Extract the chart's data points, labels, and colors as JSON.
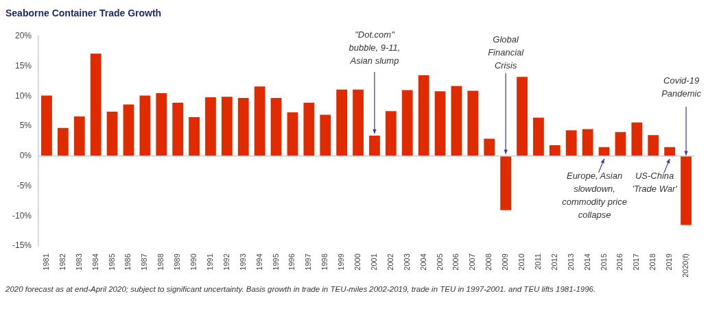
{
  "chart_data": {
    "type": "bar",
    "title": "Seaborne Container Trade Growth",
    "categories": [
      "1981",
      "1982",
      "1983",
      "1984",
      "1985",
      "1986",
      "1987",
      "1988",
      "1989",
      "1990",
      "1991",
      "1992",
      "1993",
      "1994",
      "1995",
      "1996",
      "1997",
      "1998",
      "1999",
      "2000",
      "2001",
      "2002",
      "2003",
      "2004",
      "2005",
      "2006",
      "2007",
      "2008",
      "2009",
      "2010",
      "2011",
      "2012",
      "2013",
      "2014",
      "2015",
      "2016",
      "2017",
      "2018",
      "2019",
      "2020(f)"
    ],
    "values": [
      10.1,
      4.7,
      6.6,
      17.1,
      7.4,
      8.6,
      10.1,
      10.5,
      8.9,
      6.5,
      9.8,
      9.9,
      9.7,
      11.6,
      9.7,
      7.3,
      8.9,
      6.9,
      11.1,
      11.1,
      3.4,
      7.5,
      11.0,
      13.5,
      10.8,
      11.7,
      10.9,
      2.9,
      -9.0,
      13.2,
      6.4,
      1.8,
      4.3,
      4.5,
      1.5,
      4.0,
      5.6,
      3.5,
      1.5,
      -11.5
    ],
    "color": "#e02a00",
    "ylim": [
      -15,
      20
    ],
    "yticks": [
      {
        "value": -15,
        "label": "-15%"
      },
      {
        "value": -10,
        "label": "-10%"
      },
      {
        "value": -5,
        "label": "-5%"
      },
      {
        "value": 0,
        "label": "0%"
      },
      {
        "value": 5,
        "label": "5%"
      },
      {
        "value": 10,
        "label": "10%"
      },
      {
        "value": 15,
        "label": "15%"
      },
      {
        "value": 20,
        "label": "20%"
      }
    ],
    "annotations": [
      {
        "text": "\"Dot.com\" bubble, 9-11, Asian slump",
        "x": "2001",
        "y": 3.4
      },
      {
        "text": "Global Financial Crisis",
        "x": "2009",
        "y": 0
      },
      {
        "text": "Europe, Asian slowdown, commodity price collapse",
        "x": "2015",
        "y": 0
      },
      {
        "text": "US-China 'Trade War'",
        "x": "2019",
        "y": 0
      },
      {
        "text": "Covid-19 Pandemic",
        "x": "2020(f)",
        "y": 0
      },
      "2020 forecast as at end-April 2020; subject to significant uncertainty. Basis growth in trade in TEU-miles 2002-2019, trade in TEU in 1997-2001. and TEU lifts 1981-1996."
    ]
  }
}
